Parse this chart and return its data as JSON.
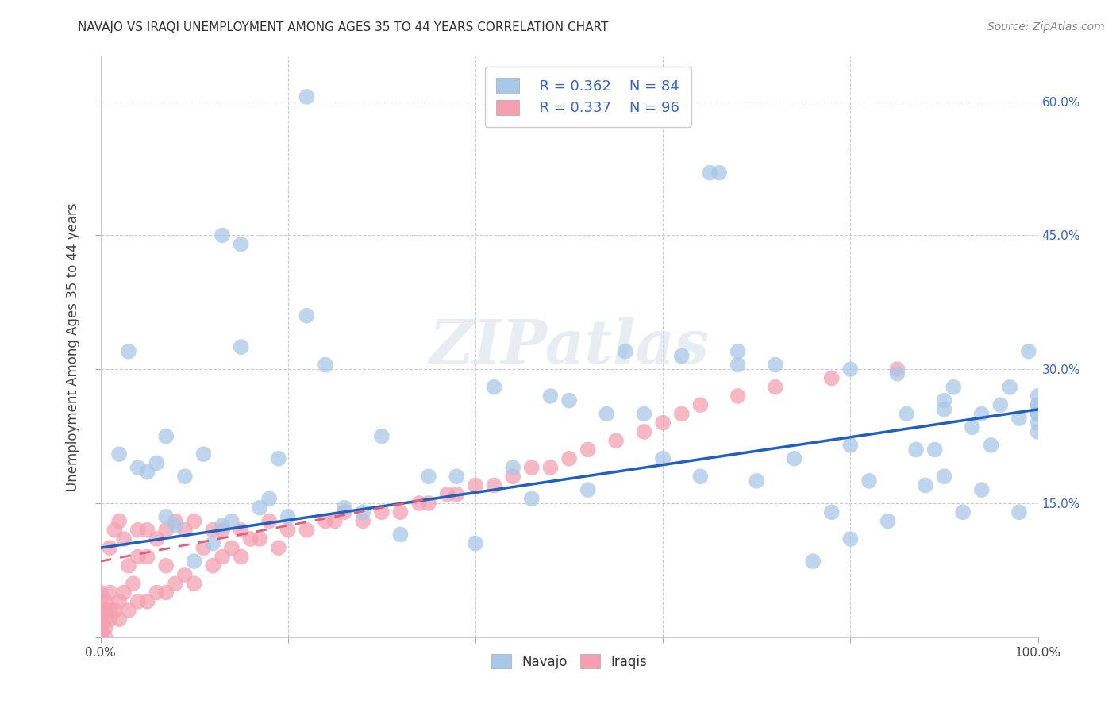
{
  "title": "NAVAJO VS IRAQI UNEMPLOYMENT AMONG AGES 35 TO 44 YEARS CORRELATION CHART",
  "source": "Source: ZipAtlas.com",
  "ylabel": "Unemployment Among Ages 35 to 44 years",
  "xlim": [
    0,
    1
  ],
  "ylim": [
    0,
    0.65
  ],
  "xtick_left_label": "0.0%",
  "xtick_right_label": "100.0%",
  "ytick_labels_right": [
    "15.0%",
    "30.0%",
    "45.0%",
    "60.0%"
  ],
  "yticks": [
    0.0,
    0.15,
    0.3,
    0.45,
    0.6
  ],
  "legend_r_navajo": "R = 0.362",
  "legend_n_navajo": "N = 84",
  "legend_r_iraqis": "R = 0.337",
  "legend_n_iraqis": "N = 96",
  "navajo_color": "#a8c8e8",
  "iraqi_color": "#f4a0b0",
  "trendline_navajo_color": "#2060c0",
  "trendline_iraqi_color": "#e06080",
  "watermark": "ZIPatlas",
  "navajo_trendline_x0": 0.0,
  "navajo_trendline_y0": 0.1,
  "navajo_trendline_x1": 1.0,
  "navajo_trendline_y1": 0.255,
  "iraqi_trendline_x0": 0.0,
  "iraqi_trendline_y0": 0.085,
  "iraqi_trendline_x1": 0.35,
  "iraqi_trendline_y1": 0.155,
  "background_color": "#ffffff",
  "grid_color": "#cccccc",
  "navajo_x": [
    0.02,
    0.04,
    0.05,
    0.06,
    0.07,
    0.08,
    0.09,
    0.1,
    0.11,
    0.12,
    0.13,
    0.14,
    0.15,
    0.17,
    0.18,
    0.19,
    0.2,
    0.22,
    0.24,
    0.26,
    0.28,
    0.3,
    0.32,
    0.35,
    0.38,
    0.4,
    0.42,
    0.44,
    0.46,
    0.48,
    0.5,
    0.52,
    0.54,
    0.56,
    0.58,
    0.6,
    0.62,
    0.64,
    0.66,
    0.68,
    0.7,
    0.72,
    0.74,
    0.76,
    0.78,
    0.8,
    0.8,
    0.82,
    0.84,
    0.85,
    0.86,
    0.87,
    0.88,
    0.89,
    0.9,
    0.9,
    0.91,
    0.92,
    0.93,
    0.94,
    0.95,
    0.96,
    0.97,
    0.98,
    0.99,
    1.0,
    1.0,
    1.0,
    1.0,
    1.0,
    1.0,
    1.0,
    0.13,
    0.22,
    0.65,
    0.03,
    0.5,
    0.15,
    0.07,
    0.68,
    0.8,
    0.9,
    0.94,
    0.98
  ],
  "navajo_y": [
    0.205,
    0.19,
    0.185,
    0.195,
    0.135,
    0.125,
    0.18,
    0.085,
    0.205,
    0.105,
    0.125,
    0.13,
    0.44,
    0.145,
    0.155,
    0.2,
    0.135,
    0.36,
    0.305,
    0.145,
    0.14,
    0.225,
    0.115,
    0.18,
    0.18,
    0.105,
    0.28,
    0.19,
    0.155,
    0.27,
    0.6,
    0.165,
    0.25,
    0.32,
    0.25,
    0.2,
    0.315,
    0.18,
    0.52,
    0.305,
    0.175,
    0.305,
    0.2,
    0.085,
    0.14,
    0.11,
    0.215,
    0.175,
    0.13,
    0.295,
    0.25,
    0.21,
    0.17,
    0.21,
    0.255,
    0.18,
    0.28,
    0.14,
    0.235,
    0.165,
    0.215,
    0.26,
    0.28,
    0.14,
    0.32,
    0.23,
    0.25,
    0.26,
    0.27,
    0.25,
    0.24,
    0.26,
    0.45,
    0.605,
    0.52,
    0.32,
    0.265,
    0.325,
    0.225,
    0.32,
    0.3,
    0.265,
    0.25,
    0.245
  ],
  "iraqi_x": [
    0.0,
    0.0,
    0.0,
    0.0,
    0.0,
    0.0,
    0.0,
    0.0,
    0.0,
    0.0,
    0.0,
    0.0,
    0.0,
    0.0,
    0.0,
    0.0,
    0.0,
    0.0,
    0.0,
    0.0,
    0.005,
    0.005,
    0.005,
    0.005,
    0.005,
    0.01,
    0.01,
    0.01,
    0.01,
    0.015,
    0.015,
    0.02,
    0.02,
    0.02,
    0.025,
    0.025,
    0.03,
    0.03,
    0.035,
    0.04,
    0.04,
    0.04,
    0.05,
    0.05,
    0.05,
    0.06,
    0.06,
    0.07,
    0.07,
    0.07,
    0.08,
    0.08,
    0.09,
    0.09,
    0.1,
    0.1,
    0.11,
    0.12,
    0.12,
    0.13,
    0.13,
    0.14,
    0.15,
    0.15,
    0.16,
    0.17,
    0.18,
    0.19,
    0.2,
    0.22,
    0.24,
    0.25,
    0.26,
    0.28,
    0.3,
    0.32,
    0.34,
    0.35,
    0.37,
    0.38,
    0.4,
    0.42,
    0.44,
    0.46,
    0.48,
    0.5,
    0.52,
    0.55,
    0.58,
    0.6,
    0.62,
    0.64,
    0.68,
    0.72,
    0.78,
    0.85
  ],
  "iraqi_y": [
    0.0,
    0.0,
    0.0,
    0.0,
    0.0,
    0.0,
    0.0,
    0.0,
    0.0,
    0.0,
    0.0,
    0.0,
    0.01,
    0.01,
    0.01,
    0.02,
    0.02,
    0.03,
    0.04,
    0.05,
    0.0,
    0.01,
    0.02,
    0.03,
    0.04,
    0.02,
    0.03,
    0.05,
    0.1,
    0.03,
    0.12,
    0.02,
    0.04,
    0.13,
    0.05,
    0.11,
    0.03,
    0.08,
    0.06,
    0.04,
    0.09,
    0.12,
    0.04,
    0.09,
    0.12,
    0.05,
    0.11,
    0.05,
    0.08,
    0.12,
    0.06,
    0.13,
    0.07,
    0.12,
    0.06,
    0.13,
    0.1,
    0.08,
    0.12,
    0.09,
    0.12,
    0.1,
    0.09,
    0.12,
    0.11,
    0.11,
    0.13,
    0.1,
    0.12,
    0.12,
    0.13,
    0.13,
    0.14,
    0.13,
    0.14,
    0.14,
    0.15,
    0.15,
    0.16,
    0.16,
    0.17,
    0.17,
    0.18,
    0.19,
    0.19,
    0.2,
    0.21,
    0.22,
    0.23,
    0.24,
    0.25,
    0.26,
    0.27,
    0.28,
    0.29,
    0.3
  ]
}
